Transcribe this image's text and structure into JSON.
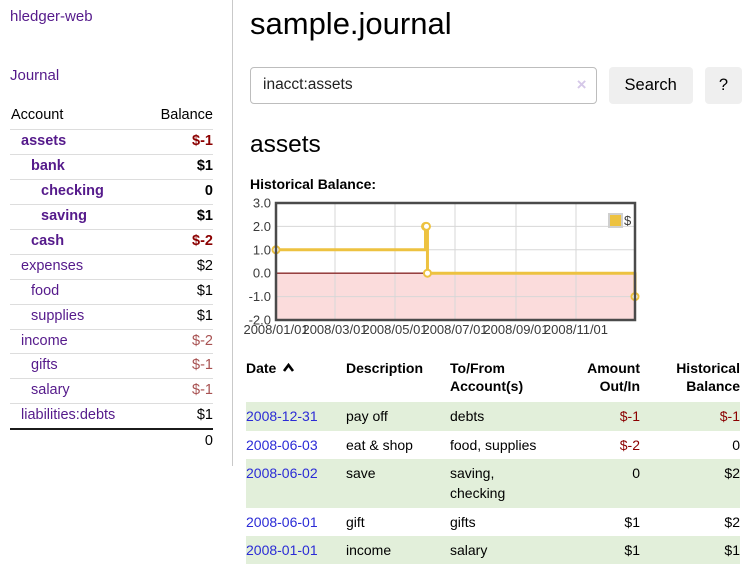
{
  "sidebar": {
    "app_title": "hledger-web",
    "nav": {
      "journal": "Journal"
    },
    "accounts_table": {
      "col_account": "Account",
      "col_balance": "Balance",
      "rows": [
        {
          "name": "assets",
          "balance": "$-1"
        },
        {
          "name": "bank",
          "balance": "$1"
        },
        {
          "name": "checking",
          "balance": "0"
        },
        {
          "name": "saving",
          "balance": "$1"
        },
        {
          "name": "cash",
          "balance": "$-2"
        },
        {
          "name": "expenses",
          "balance": "$2"
        },
        {
          "name": "food",
          "balance": "$1"
        },
        {
          "name": "supplies",
          "balance": "$1"
        },
        {
          "name": "income",
          "balance": "$-2"
        },
        {
          "name": "gifts",
          "balance": "$-1"
        },
        {
          "name": "salary",
          "balance": "$-1"
        },
        {
          "name": "liabilities:debts",
          "balance": "$1"
        }
      ],
      "total": "0"
    }
  },
  "header": {
    "title": "sample.journal"
  },
  "search": {
    "value": "inacct:assets",
    "clear_icon": "×",
    "button": "Search",
    "help_button": "?"
  },
  "account_page": {
    "heading": "assets",
    "chart_label": "Historical Balance:"
  },
  "chart_data": {
    "type": "line",
    "title": "Historical Balance",
    "series": [
      {
        "name": "$",
        "color": "#EDC240",
        "step": true,
        "points": [
          [
            "2008-01-01",
            1
          ],
          [
            "2008-06-01",
            2
          ],
          [
            "2008-06-02",
            2
          ],
          [
            "2008-06-03",
            0
          ],
          [
            "2008-12-31",
            -1
          ]
        ]
      }
    ],
    "x_range": [
      "2008-01-01",
      "2008-12-31"
    ],
    "x_ticks": [
      "2008/01/01",
      "2008/03/01",
      "2008/05/01",
      "2008/07/01",
      "2008/09/01",
      "2008/11/01"
    ],
    "y_ticks": [
      3,
      2,
      1,
      0,
      -1,
      -2
    ],
    "ylim": [
      -2,
      3
    ],
    "grid": true,
    "legend_position": "top-right",
    "negative_region_color": "#fbdcdc",
    "zero_line_color": "#8b2a2a"
  },
  "register": {
    "sort_icon": "chevron-up",
    "columns": {
      "date": "Date",
      "description": "Description",
      "to_from": "To/From Account(s)",
      "amount": "Amount Out/In",
      "balance": "Historical Balance"
    },
    "rows": [
      {
        "date": "2008-12-31",
        "description": "pay off",
        "to_from": "debts",
        "amount": "$-1",
        "balance": "$-1"
      },
      {
        "date": "2008-06-03",
        "description": "eat & shop",
        "to_from": "food, supplies",
        "amount": "$-2",
        "balance": "0"
      },
      {
        "date": "2008-06-02",
        "description": "save",
        "to_from": "saving,\nchecking",
        "amount": "0",
        "balance": "$2"
      },
      {
        "date": "2008-06-01",
        "description": "gift",
        "to_from": "gifts",
        "amount": "$1",
        "balance": "$2"
      },
      {
        "date": "2008-01-01",
        "description": "income",
        "to_from": "salary",
        "amount": "$1",
        "balance": "$1"
      }
    ]
  }
}
